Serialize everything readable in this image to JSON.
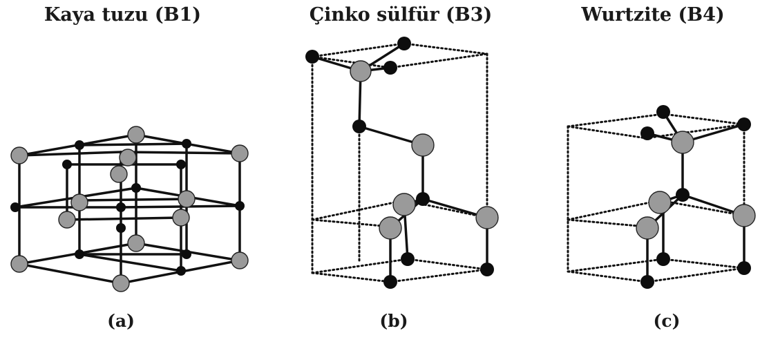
{
  "panels": [
    {
      "title": "Kaya tuzu (B1)",
      "label": "(a)"
    },
    {
      "title": "Çinko sülfür (B3)",
      "label": "(b)"
    },
    {
      "title": "Wurtzite (B4)",
      "label": "(c)"
    }
  ],
  "colors": {
    "dark_atom": "#0d0d0d",
    "light_atom": "#9a9a9a",
    "bond": "#111111"
  }
}
